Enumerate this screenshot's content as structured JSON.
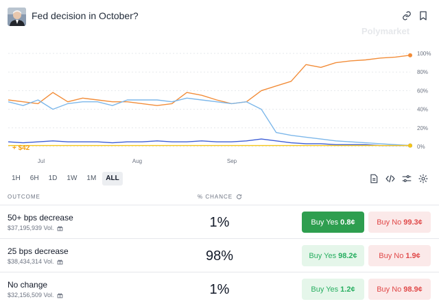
{
  "header": {
    "title": "Fed decision in October?",
    "link_icon": "link-icon",
    "bookmark_icon": "bookmark-icon"
  },
  "watermark": "Polymarket",
  "pnl_label": "+ $42",
  "chart_data": {
    "type": "line",
    "x_ticks": [
      "Jul",
      "Aug",
      "Sep"
    ],
    "y_ticks": [
      "100%",
      "80%",
      "60%",
      "40%",
      "20%",
      "0%"
    ],
    "ylim": [
      0,
      100
    ],
    "grid": true,
    "series": [
      {
        "color": "#f28c38",
        "values": [
          50,
          48,
          46,
          58,
          48,
          52,
          50,
          48,
          48,
          46,
          44,
          46,
          58,
          55,
          50,
          46,
          48,
          60,
          65,
          70,
          88,
          85,
          90,
          92,
          93,
          95,
          96,
          98
        ]
      },
      {
        "color": "#7cb7ea",
        "values": [
          48,
          44,
          50,
          40,
          46,
          48,
          48,
          44,
          50,
          50,
          50,
          48,
          52,
          50,
          48,
          46,
          48,
          40,
          15,
          12,
          10,
          8,
          6,
          5,
          4,
          3,
          2,
          1
        ]
      },
      {
        "color": "#3b5cd6",
        "values": [
          5,
          4,
          5,
          6,
          5,
          5,
          5,
          4,
          5,
          5,
          6,
          5,
          5,
          6,
          5,
          5,
          6,
          8,
          6,
          4,
          3,
          3,
          2,
          2,
          2,
          1,
          1,
          1
        ]
      },
      {
        "color": "#f5c518",
        "values": [
          1,
          1,
          1,
          1,
          1,
          1,
          1,
          1,
          1,
          1,
          1,
          1,
          1,
          1,
          1,
          1,
          1,
          1,
          1,
          1,
          1,
          1,
          1,
          1,
          1,
          1,
          1,
          1
        ]
      }
    ]
  },
  "ranges": [
    "1H",
    "6H",
    "1D",
    "1W",
    "1M",
    "ALL"
  ],
  "active_range": "ALL",
  "columns": {
    "outcome": "OUTCOME",
    "chance": "% CHANCE"
  },
  "outcomes": [
    {
      "name": "50+ bps decrease",
      "volume": "$37,195,939 Vol.",
      "chance": "1%",
      "yes_label": "Buy Yes",
      "yes_price": "0.8¢",
      "no_label": "Buy No",
      "no_price": "99.3¢"
    },
    {
      "name": "25 bps decrease",
      "volume": "$38,434,314 Vol.",
      "chance": "98%",
      "yes_label": "Buy Yes",
      "yes_price": "98.2¢",
      "no_label": "Buy No",
      "no_price": "1.9¢"
    },
    {
      "name": "No change",
      "volume": "$32,156,509 Vol.",
      "chance": "1%",
      "yes_label": "Buy Yes",
      "yes_price": "1.2¢",
      "no_label": "Buy No",
      "no_price": "98.9¢"
    }
  ]
}
